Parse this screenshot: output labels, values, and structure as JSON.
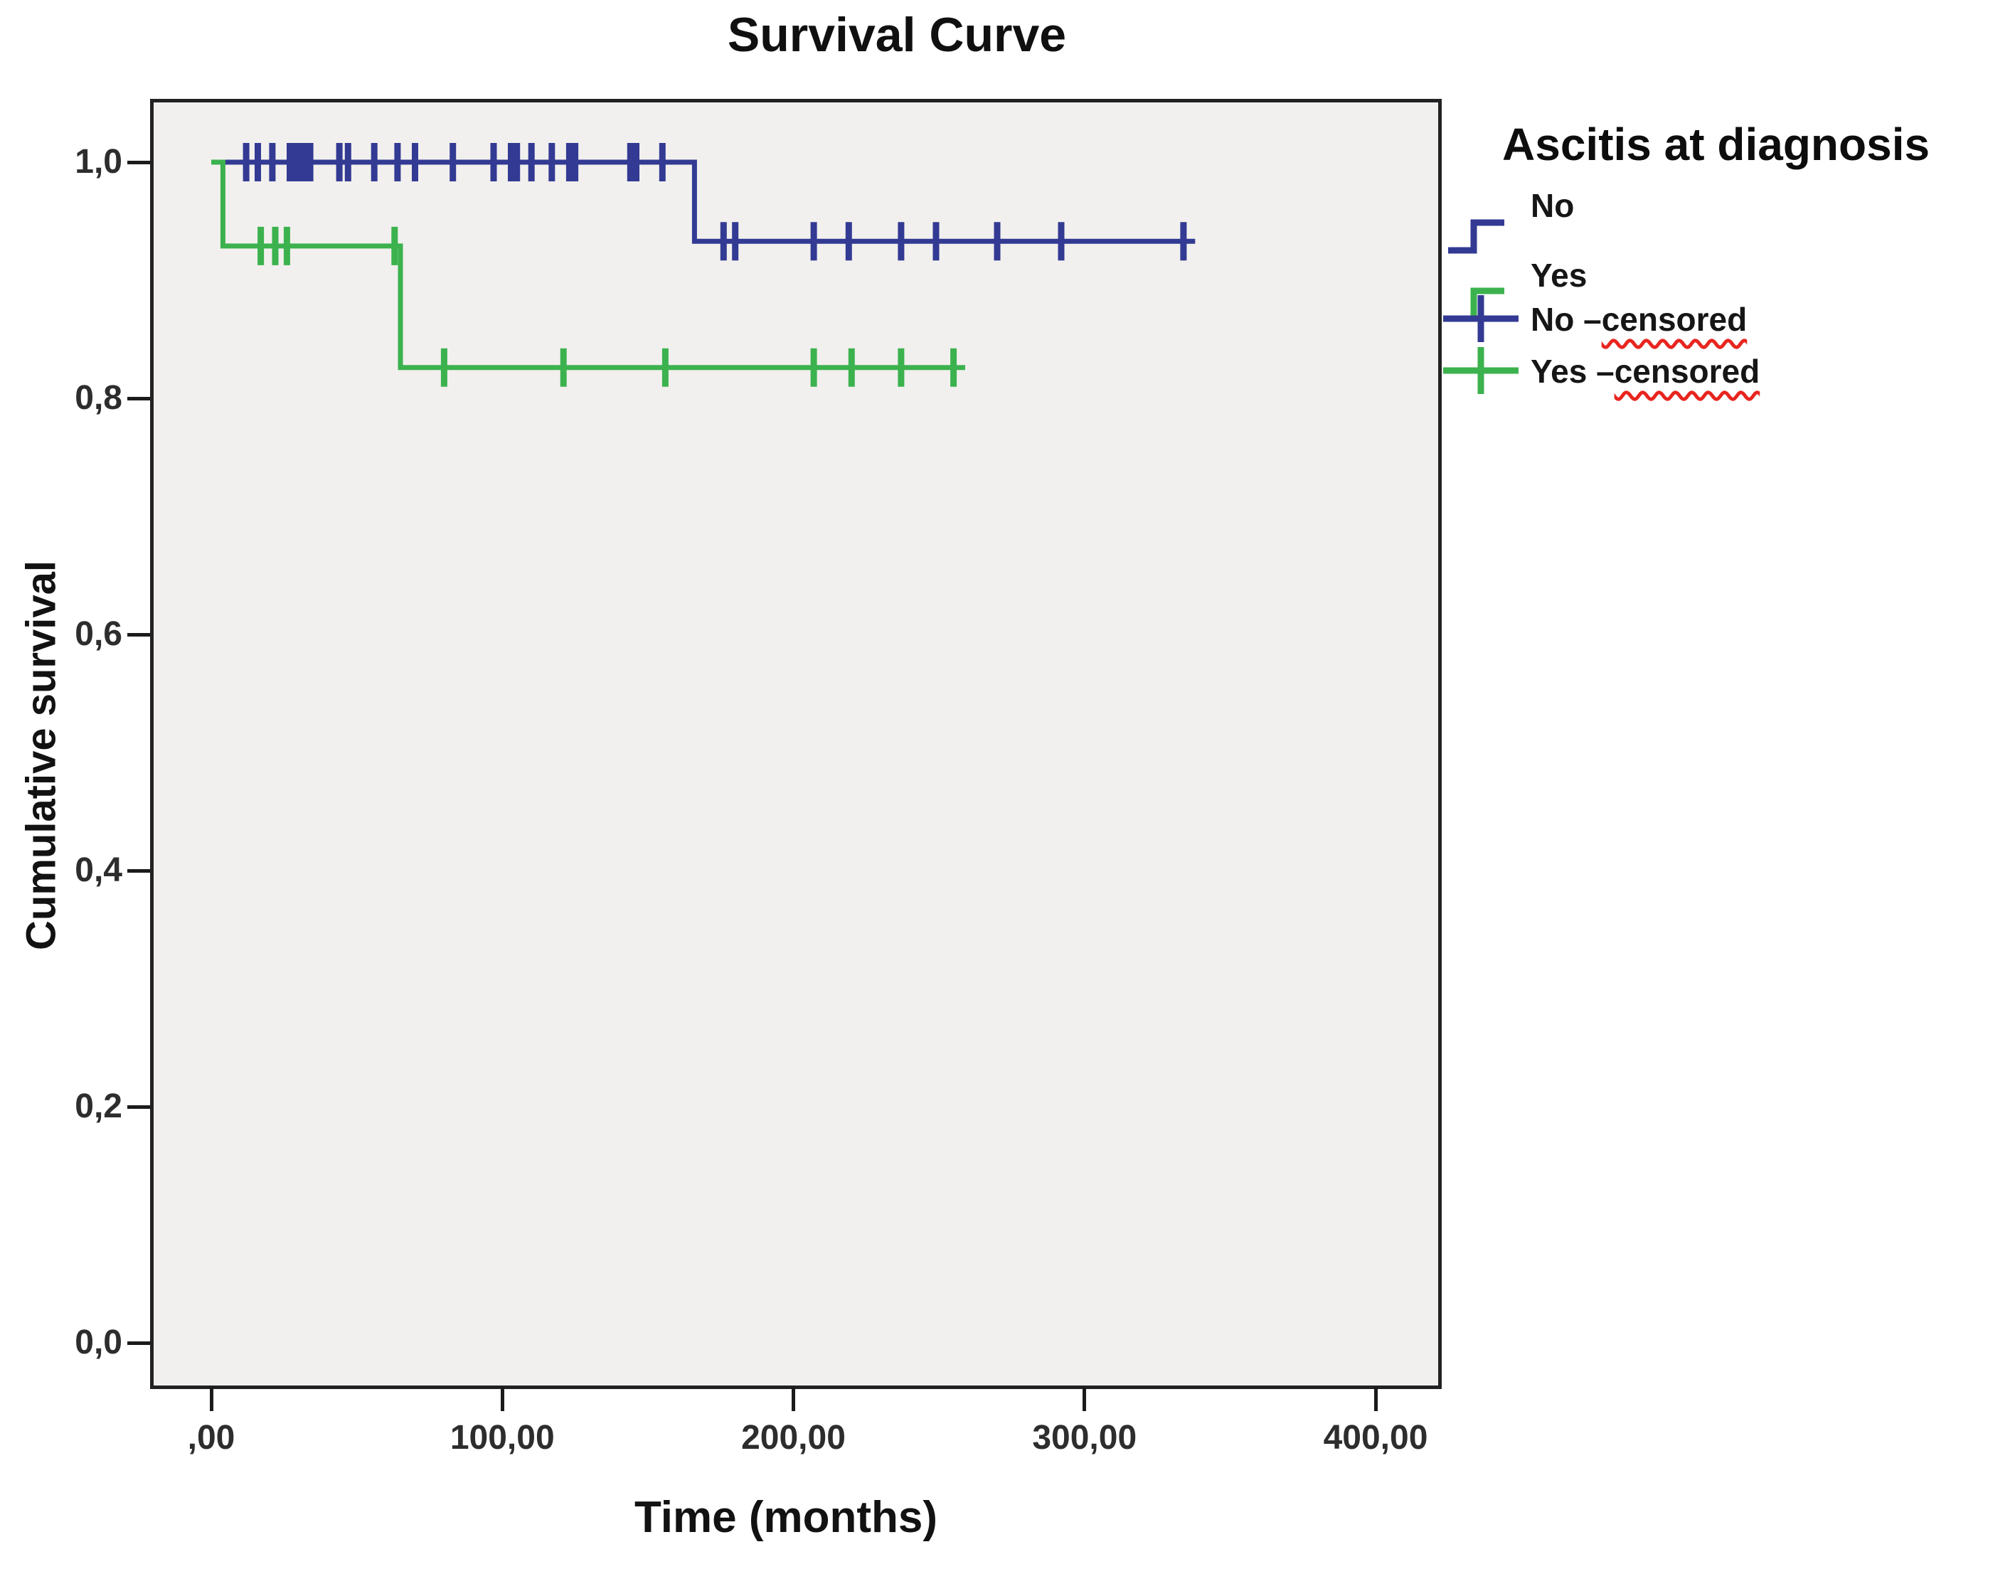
{
  "title": "Survival Curve",
  "axes": {
    "x_label": "Time (months)",
    "y_label": "Cumulative survival",
    "x_ticks": [
      {
        "label": ",00",
        "value": 0
      },
      {
        "label": "100,00",
        "value": 100
      },
      {
        "label": "200,00",
        "value": 200
      },
      {
        "label": "300,00",
        "value": 300
      },
      {
        "label": "400,00",
        "value": 400
      }
    ],
    "y_ticks": [
      {
        "label": "0,0",
        "value": 0.0
      },
      {
        "label": "0,2",
        "value": 0.2
      },
      {
        "label": "0,4",
        "value": 0.4
      },
      {
        "label": "0,6",
        "value": 0.6
      },
      {
        "label": "0,8",
        "value": 0.8
      },
      {
        "label": "1,0",
        "value": 1.0
      }
    ]
  },
  "legend": {
    "title": "Ascitis at diagnosis",
    "items": [
      {
        "label": "No",
        "prefix": "No",
        "wavy": "",
        "color": "#333a93",
        "symbol": "step"
      },
      {
        "label": "Yes",
        "prefix": "Yes",
        "wavy": "",
        "color": "#3cb24e",
        "symbol": "step"
      },
      {
        "label": "No –censored",
        "prefix": "No –",
        "wavy": "censored",
        "color": "#333a93",
        "symbol": "plus"
      },
      {
        "label": "Yes –censored",
        "prefix": "Yes –",
        "wavy": "censored",
        "color": "#3cb24e",
        "symbol": "plus"
      }
    ]
  },
  "colors": {
    "no_curve": "#333a93",
    "yes_curve": "#3cb24e",
    "plot_background": "#f1f0ee",
    "frame": "#222222",
    "spellcheck_underline": "#e8251f"
  },
  "chart_data": {
    "type": "line",
    "subtype": "kaplan-meier-step",
    "title": "Survival Curve",
    "xlabel": "Time (months)",
    "ylabel": "Cumulative survival",
    "xlim": [
      -21,
      423
    ],
    "ylim": [
      -0.037,
      1.055
    ],
    "x_tick_values": [
      0,
      100,
      200,
      300,
      400
    ],
    "y_tick_values": [
      0.0,
      0.2,
      0.4,
      0.6,
      0.8,
      1.0
    ],
    "grid": false,
    "legend_position": "right",
    "series": [
      {
        "name": "No",
        "color": "#333a93",
        "steps": [
          [
            0,
            1.0
          ],
          [
            166,
            1.0
          ],
          [
            166,
            0.933
          ],
          [
            338,
            0.933
          ]
        ],
        "censored": [
          [
            12,
            1.0
          ],
          [
            16,
            1.0
          ],
          [
            21,
            1.0
          ],
          [
            27,
            1.0
          ],
          [
            29,
            1.0
          ],
          [
            31,
            1.0
          ],
          [
            33,
            1.0
          ],
          [
            34,
            1.0
          ],
          [
            44,
            1.0
          ],
          [
            47,
            1.0
          ],
          [
            56,
            1.0
          ],
          [
            64,
            1.0
          ],
          [
            70,
            1.0
          ],
          [
            83,
            1.0
          ],
          [
            97,
            1.0
          ],
          [
            103,
            1.0
          ],
          [
            105,
            1.0
          ],
          [
            110,
            1.0
          ],
          [
            117,
            1.0
          ],
          [
            123,
            1.0
          ],
          [
            125,
            1.0
          ],
          [
            144,
            1.0
          ],
          [
            146,
            1.0
          ],
          [
            155,
            1.0
          ],
          [
            176,
            0.933
          ],
          [
            180,
            0.933
          ],
          [
            207,
            0.933
          ],
          [
            219,
            0.933
          ],
          [
            237,
            0.933
          ],
          [
            249,
            0.933
          ],
          [
            270,
            0.933
          ],
          [
            292,
            0.933
          ],
          [
            334,
            0.933
          ]
        ]
      },
      {
        "name": "Yes",
        "color": "#3cb24e",
        "steps": [
          [
            0,
            1.0
          ],
          [
            4,
            1.0
          ],
          [
            4,
            0.929
          ],
          [
            65,
            0.929
          ],
          [
            65,
            0.826
          ],
          [
            259,
            0.826
          ]
        ],
        "censored": [
          [
            17,
            0.929
          ],
          [
            22,
            0.929
          ],
          [
            26,
            0.929
          ],
          [
            63,
            0.929
          ],
          [
            80,
            0.826
          ],
          [
            121,
            0.826
          ],
          [
            156,
            0.826
          ],
          [
            207,
            0.826
          ],
          [
            220,
            0.826
          ],
          [
            237,
            0.826
          ],
          [
            255,
            0.826
          ]
        ]
      }
    ]
  }
}
